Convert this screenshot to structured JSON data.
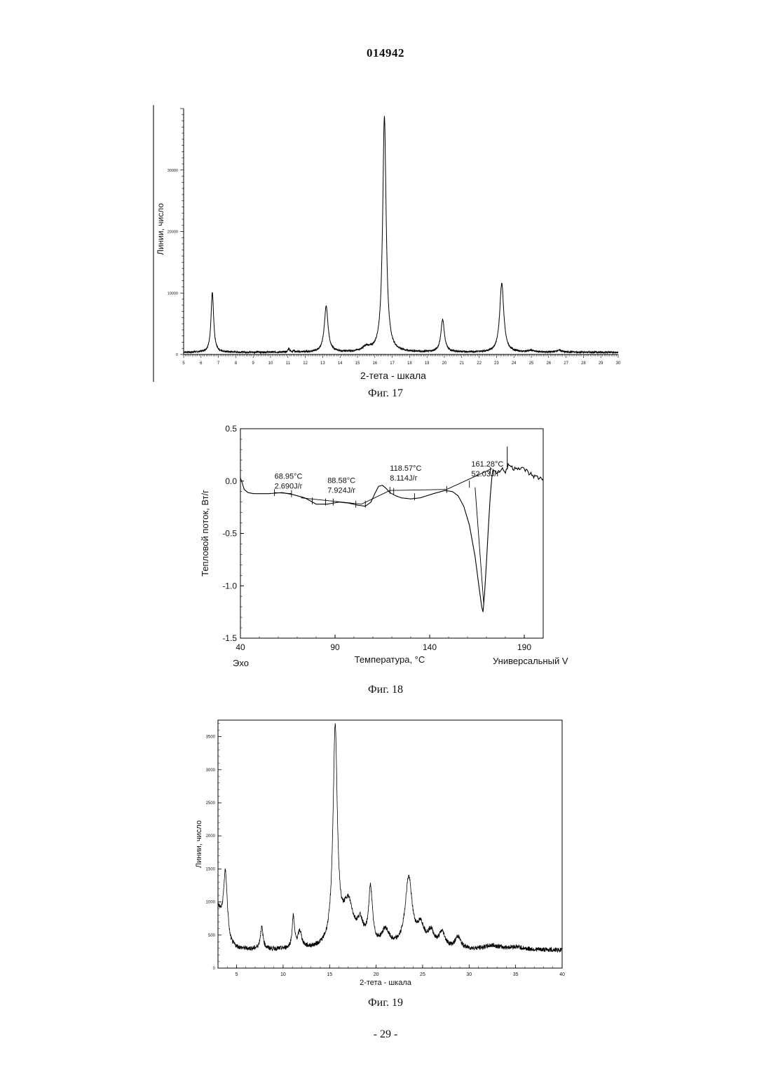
{
  "header": {
    "doc_number": "014942"
  },
  "footer": {
    "page_number": "- 29 -"
  },
  "figures": [
    {
      "caption": "Фиг. 17"
    },
    {
      "caption": "Фиг. 18"
    },
    {
      "caption": "Фиг. 19"
    }
  ],
  "chart_data": [
    {
      "type": "line",
      "xlabel": "2-тета - шкала",
      "ylabel": "Линии, число",
      "xlim": [
        5,
        30
      ],
      "ylim": [
        0,
        40000
      ],
      "x_ticks": [
        "5",
        "6",
        "7",
        "8",
        "9",
        "10",
        "11",
        "12",
        "13",
        "14",
        "15",
        "16",
        "17",
        "18",
        "19",
        "20",
        "21",
        "22",
        "23",
        "24",
        "25",
        "26",
        "27",
        "28",
        "29",
        "30"
      ],
      "y_ticks": [
        {
          "value": 0,
          "label": "0"
        },
        {
          "value": 10000,
          "label": "10000"
        },
        {
          "value": 20000,
          "label": "20000"
        },
        {
          "value": 30000,
          "label": "30000"
        }
      ],
      "baseline": 350,
      "peaks": [
        {
          "x": 6.65,
          "height": 9700,
          "width": 0.09
        },
        {
          "x": 11.05,
          "height": 650,
          "width": 0.05
        },
        {
          "x": 11.35,
          "height": 250,
          "width": 0.05
        },
        {
          "x": 13.2,
          "height": 7400,
          "width": 0.13
        },
        {
          "x": 15.5,
          "height": 700,
          "width": 0.25
        },
        {
          "x": 16.55,
          "height": 38300,
          "width": 0.12
        },
        {
          "x": 19.9,
          "height": 5300,
          "width": 0.12
        },
        {
          "x": 23.3,
          "height": 11200,
          "width": 0.14
        },
        {
          "x": 25.0,
          "height": 250,
          "width": 0.2
        },
        {
          "x": 26.6,
          "height": 300,
          "width": 0.2
        }
      ]
    },
    {
      "type": "line",
      "xlabel": "Температура, °C",
      "ylabel": "Тепловой поток, Вт/г",
      "bottom_left_label": "Эхо",
      "bottom_right_label": "Универсальный V",
      "xlim": [
        40,
        200
      ],
      "ylim": [
        -1.5,
        0.5
      ],
      "x_ticks": [
        {
          "value": 40,
          "label": "40"
        },
        {
          "value": 90,
          "label": "90"
        },
        {
          "value": 140,
          "label": "140"
        },
        {
          "value": 190,
          "label": "190"
        }
      ],
      "y_ticks": [
        {
          "value": 0.5,
          "label": "0.5"
        },
        {
          "value": 0.0,
          "label": "0.0"
        },
        {
          "value": -0.5,
          "label": "-0.5"
        },
        {
          "value": -1.0,
          "label": "-1.0"
        },
        {
          "value": -1.5,
          "label": "-1.5"
        }
      ],
      "curve": [
        [
          40,
          0.03
        ],
        [
          41,
          -0.02
        ],
        [
          42,
          -0.08
        ],
        [
          44,
          -0.11
        ],
        [
          47,
          -0.12
        ],
        [
          55,
          -0.12
        ],
        [
          62,
          -0.11
        ],
        [
          68,
          -0.13
        ],
        [
          74,
          -0.16
        ],
        [
          78,
          -0.2
        ],
        [
          80,
          -0.22
        ],
        [
          86,
          -0.22
        ],
        [
          92,
          -0.2
        ],
        [
          97,
          -0.21
        ],
        [
          102,
          -0.23
        ],
        [
          106,
          -0.24
        ],
        [
          109,
          -0.2
        ],
        [
          111,
          -0.12
        ],
        [
          113,
          -0.05
        ],
        [
          115,
          -0.04
        ],
        [
          117,
          -0.07
        ],
        [
          119,
          -0.11
        ],
        [
          122,
          -0.14
        ],
        [
          125,
          -0.16
        ],
        [
          130,
          -0.17
        ],
        [
          135,
          -0.16
        ],
        [
          142,
          -0.12
        ],
        [
          148,
          -0.09
        ],
        [
          152,
          -0.1
        ],
        [
          155,
          -0.14
        ],
        [
          158,
          -0.24
        ],
        [
          161,
          -0.42
        ],
        [
          164,
          -0.72
        ],
        [
          166,
          -1.0
        ],
        [
          167.5,
          -1.2
        ],
        [
          168.2,
          -1.25
        ],
        [
          169,
          -1.08
        ],
        [
          170,
          -0.78
        ],
        [
          171,
          -0.45
        ],
        [
          172,
          -0.15
        ],
        [
          173,
          0.05
        ],
        [
          174,
          0.12
        ],
        [
          176,
          0.08
        ],
        [
          178,
          0.12
        ],
        [
          180,
          0.09
        ],
        [
          182,
          0.16
        ],
        [
          184,
          0.12
        ],
        [
          186,
          0.14
        ],
        [
          188,
          0.11
        ],
        [
          190,
          0.12
        ],
        [
          192,
          0.08
        ],
        [
          194,
          0.06
        ],
        [
          196,
          0.04
        ],
        [
          198,
          0.03
        ],
        [
          200,
          0.02
        ]
      ],
      "annotations": [
        {
          "temp": "68.95°C",
          "energy": "2.690J/г",
          "x": 58,
          "y": -0.02
        },
        {
          "temp": "88.58°C",
          "energy": "7.924J/г",
          "x": 86,
          "y": -0.06
        },
        {
          "temp": "118.57°C",
          "energy": "8.114J/г",
          "x": 119,
          "y": 0.06
        },
        {
          "temp": "161.28°C",
          "energy": "52.03J/г",
          "x": 162,
          "y": 0.1
        }
      ]
    },
    {
      "type": "line",
      "xlabel": "2-тета - шкала",
      "ylabel": "Линии, число",
      "xlim": [
        3,
        40
      ],
      "ylim": [
        0,
        3750
      ],
      "x_ticks": [
        {
          "value": 5,
          "label": "5"
        },
        {
          "value": 10,
          "label": "10"
        },
        {
          "value": 15,
          "label": "15"
        },
        {
          "value": 20,
          "label": "20"
        },
        {
          "value": 25,
          "label": "25"
        },
        {
          "value": 30,
          "label": "30"
        },
        {
          "value": 35,
          "label": "35"
        },
        {
          "value": 40,
          "label": "40"
        }
      ],
      "y_ticks": [
        {
          "value": 0,
          "label": "0"
        },
        {
          "value": 500,
          "label": "500"
        },
        {
          "value": 1000,
          "label": "1000"
        },
        {
          "value": 1500,
          "label": "1500"
        },
        {
          "value": 2000,
          "label": "2000"
        },
        {
          "value": 2500,
          "label": "2500"
        },
        {
          "value": 3000,
          "label": "3000"
        },
        {
          "value": 3500,
          "label": "3500"
        }
      ],
      "baseline": 270,
      "peaks": [
        {
          "x": 3.8,
          "height": 1000,
          "width": 0.25
        },
        {
          "x": 3.0,
          "height": 300,
          "width": 0.5
        },
        {
          "x": 7.7,
          "height": 330,
          "width": 0.18
        },
        {
          "x": 11.1,
          "height": 480,
          "width": 0.15
        },
        {
          "x": 11.8,
          "height": 250,
          "width": 0.25
        },
        {
          "x": 15.6,
          "height": 3250,
          "width": 0.28
        },
        {
          "x": 17.0,
          "height": 650,
          "width": 0.7
        },
        {
          "x": 18.3,
          "height": 300,
          "width": 0.4
        },
        {
          "x": 19.4,
          "height": 850,
          "width": 0.25
        },
        {
          "x": 21.0,
          "height": 250,
          "width": 0.5
        },
        {
          "x": 23.5,
          "height": 1050,
          "width": 0.45
        },
        {
          "x": 24.8,
          "height": 300,
          "width": 0.5
        },
        {
          "x": 25.9,
          "height": 220,
          "width": 0.4
        },
        {
          "x": 27.1,
          "height": 230,
          "width": 0.4
        },
        {
          "x": 28.8,
          "height": 180,
          "width": 0.35
        },
        {
          "x": 32.5,
          "height": 60,
          "width": 1.0
        },
        {
          "x": 35.0,
          "height": 40,
          "width": 1.0
        }
      ]
    }
  ]
}
